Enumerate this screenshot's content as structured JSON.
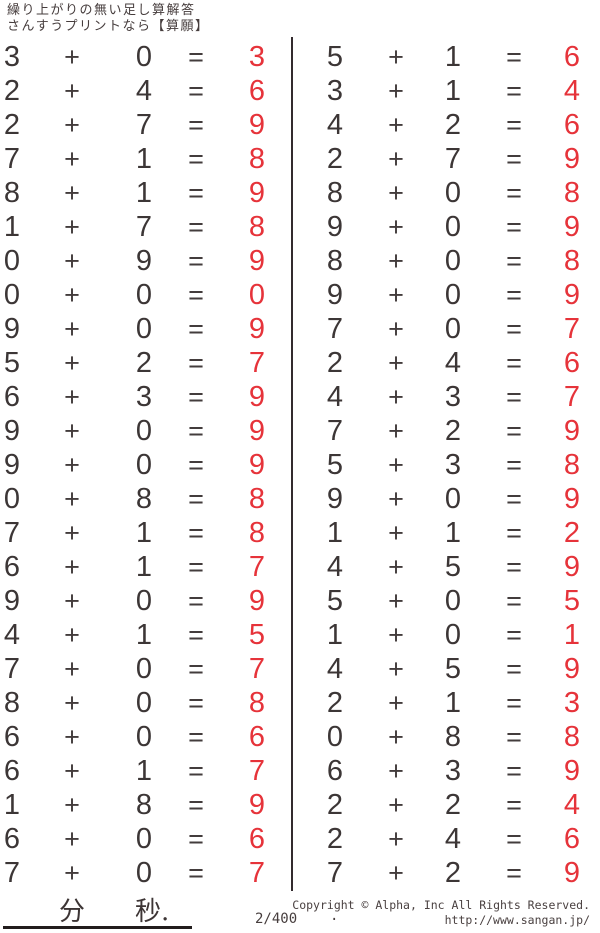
{
  "header": {
    "line1": "繰り上がりの無い足し算解答",
    "line2": "さんすうプリントなら【算願】"
  },
  "problems": {
    "operator": "+",
    "equals": "=",
    "left": [
      {
        "a": 3,
        "b": 0,
        "ans": 3
      },
      {
        "a": 2,
        "b": 4,
        "ans": 6
      },
      {
        "a": 2,
        "b": 7,
        "ans": 9
      },
      {
        "a": 7,
        "b": 1,
        "ans": 8
      },
      {
        "a": 8,
        "b": 1,
        "ans": 9
      },
      {
        "a": 1,
        "b": 7,
        "ans": 8
      },
      {
        "a": 0,
        "b": 9,
        "ans": 9
      },
      {
        "a": 0,
        "b": 0,
        "ans": 0
      },
      {
        "a": 9,
        "b": 0,
        "ans": 9
      },
      {
        "a": 5,
        "b": 2,
        "ans": 7
      },
      {
        "a": 6,
        "b": 3,
        "ans": 9
      },
      {
        "a": 9,
        "b": 0,
        "ans": 9
      },
      {
        "a": 9,
        "b": 0,
        "ans": 9
      },
      {
        "a": 0,
        "b": 8,
        "ans": 8
      },
      {
        "a": 7,
        "b": 1,
        "ans": 8
      },
      {
        "a": 6,
        "b": 1,
        "ans": 7
      },
      {
        "a": 9,
        "b": 0,
        "ans": 9
      },
      {
        "a": 4,
        "b": 1,
        "ans": 5
      },
      {
        "a": 7,
        "b": 0,
        "ans": 7
      },
      {
        "a": 8,
        "b": 0,
        "ans": 8
      },
      {
        "a": 6,
        "b": 0,
        "ans": 6
      },
      {
        "a": 6,
        "b": 1,
        "ans": 7
      },
      {
        "a": 1,
        "b": 8,
        "ans": 9
      },
      {
        "a": 6,
        "b": 0,
        "ans": 6
      },
      {
        "a": 7,
        "b": 0,
        "ans": 7
      }
    ],
    "right": [
      {
        "a": 5,
        "b": 1,
        "ans": 6
      },
      {
        "a": 3,
        "b": 1,
        "ans": 4
      },
      {
        "a": 4,
        "b": 2,
        "ans": 6
      },
      {
        "a": 2,
        "b": 7,
        "ans": 9
      },
      {
        "a": 8,
        "b": 0,
        "ans": 8
      },
      {
        "a": 9,
        "b": 0,
        "ans": 9
      },
      {
        "a": 8,
        "b": 0,
        "ans": 8
      },
      {
        "a": 9,
        "b": 0,
        "ans": 9
      },
      {
        "a": 7,
        "b": 0,
        "ans": 7
      },
      {
        "a": 2,
        "b": 4,
        "ans": 6
      },
      {
        "a": 4,
        "b": 3,
        "ans": 7
      },
      {
        "a": 7,
        "b": 2,
        "ans": 9
      },
      {
        "a": 5,
        "b": 3,
        "ans": 8
      },
      {
        "a": 9,
        "b": 0,
        "ans": 9
      },
      {
        "a": 1,
        "b": 1,
        "ans": 2
      },
      {
        "a": 4,
        "b": 5,
        "ans": 9
      },
      {
        "a": 5,
        "b": 0,
        "ans": 5
      },
      {
        "a": 1,
        "b": 0,
        "ans": 1
      },
      {
        "a": 4,
        "b": 5,
        "ans": 9
      },
      {
        "a": 2,
        "b": 1,
        "ans": 3
      },
      {
        "a": 0,
        "b": 8,
        "ans": 8
      },
      {
        "a": 6,
        "b": 3,
        "ans": 9
      },
      {
        "a": 2,
        "b": 2,
        "ans": 4
      },
      {
        "a": 2,
        "b": 4,
        "ans": 6
      },
      {
        "a": 7,
        "b": 2,
        "ans": 9
      }
    ]
  },
  "footer": {
    "minutes_label": "分",
    "seconds_label": "秒.",
    "page": "2/400",
    "dot": ".",
    "copyright": "Copyright ©  Alpha, Inc All Rights Reserved.",
    "url": "http://www.sangan.jp/"
  },
  "colors": {
    "answer": "#e6333a",
    "ink": "#3c3636"
  }
}
